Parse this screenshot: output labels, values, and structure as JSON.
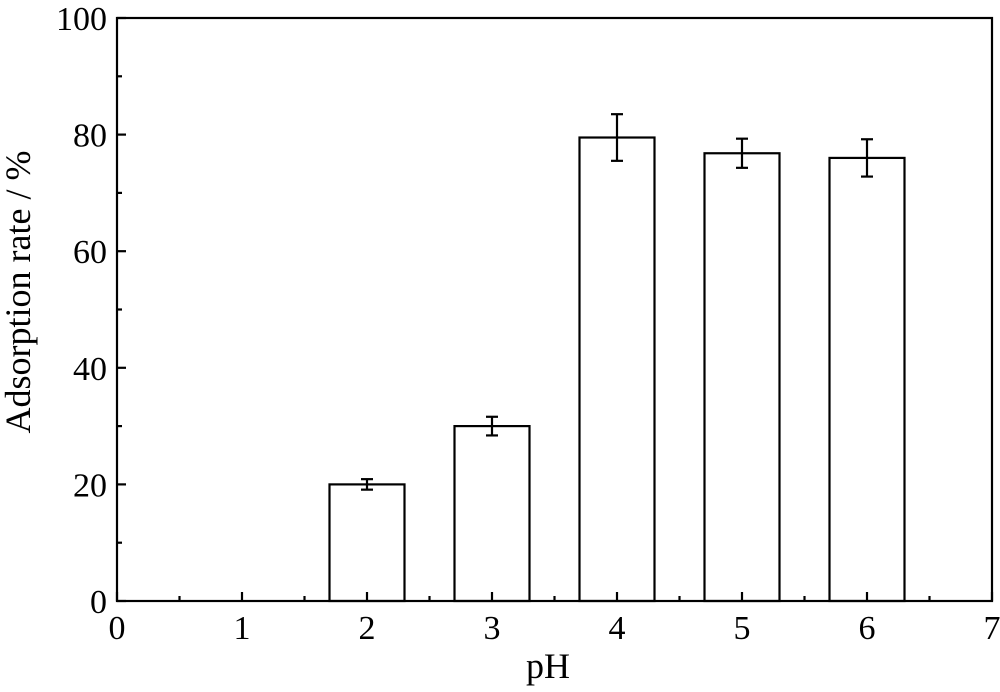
{
  "chart_data": {
    "type": "bar",
    "x_values": [
      2,
      3,
      4,
      5,
      6
    ],
    "values": [
      20.0,
      30.0,
      79.5,
      76.8,
      76.0
    ],
    "errors": [
      0.9,
      1.6,
      4.0,
      2.5,
      3.2
    ],
    "xlabel": "pH",
    "ylabel": "Adsorption rate / %",
    "xlim": [
      0,
      7
    ],
    "ylim": [
      0,
      100
    ],
    "x_ticks": [
      0,
      1,
      2,
      3,
      4,
      5,
      6,
      7
    ],
    "y_ticks": [
      0,
      20,
      40,
      60,
      80,
      100
    ],
    "bar_width": 0.6,
    "grid": false,
    "legend": "none",
    "colors": {
      "bar_fill": "#ffffff",
      "bar_stroke": "#000000",
      "axis": "#000000"
    }
  }
}
